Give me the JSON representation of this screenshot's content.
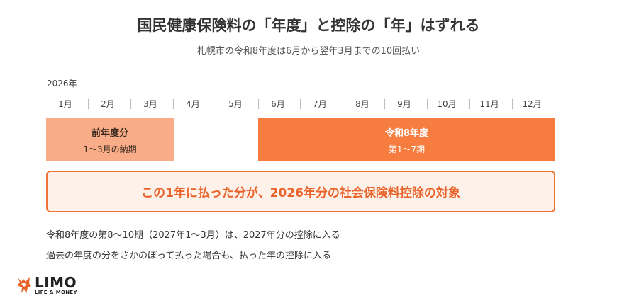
{
  "header": {
    "title": "国民健康保険料の「年度」と控除の「年」はずれる",
    "subtitle": "札幌市の令和8年度は6月から翌年3月までの10回払い"
  },
  "timeline": {
    "year_label": "2026年",
    "months": [
      "1月",
      "2月",
      "3月",
      "4月",
      "5月",
      "6月",
      "7月",
      "8月",
      "9月",
      "10月",
      "11月",
      "12月"
    ],
    "periods": [
      {
        "title": "前年度分",
        "subtitle": "1〜3月の納期",
        "start_month": 1,
        "end_month": 3,
        "color": "#f8ac87"
      },
      {
        "title": "令和8年度",
        "subtitle": "第1〜7期",
        "start_month": 6,
        "end_month": 12,
        "color": "#f77c3f"
      }
    ]
  },
  "highlight": {
    "text": "この1年に払った分が、2026年分の社会保険料控除の対象",
    "accent_color": "#e8642a"
  },
  "notes": [
    "令和8年度の第8〜10期（2027年1〜3月）は、2027年分の控除に入る",
    "過去の年度の分をさかのぼって払った場合も、払った年の控除に入る"
  ],
  "logo": {
    "name": "LIMO",
    "tagline": "LIFE & MONEY",
    "icon": "fox-logo-icon",
    "brand_color": "#e8642a"
  }
}
